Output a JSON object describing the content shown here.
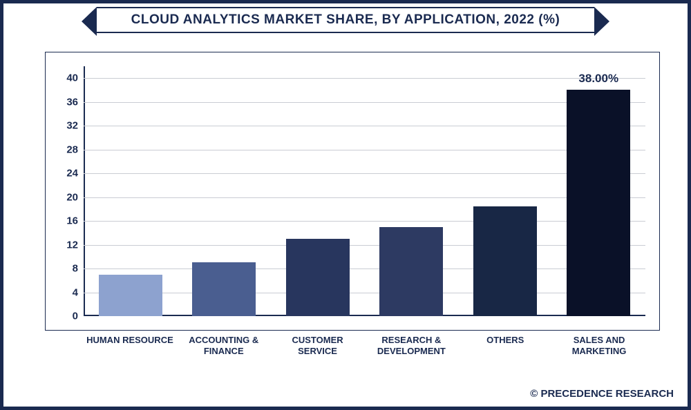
{
  "title": "CLOUD ANALYTICS MARKET SHARE, BY APPLICATION, 2022 (%)",
  "chart": {
    "type": "bar",
    "ylim": [
      0,
      42
    ],
    "yticks": [
      0,
      4,
      8,
      12,
      16,
      20,
      24,
      28,
      32,
      36,
      40
    ],
    "grid_color": "#c9ccd3",
    "axis_color": "#1a2a50",
    "background_color": "#ffffff",
    "tick_fontsize": 15,
    "xlabel_fontsize": 13,
    "bar_width": 0.68,
    "title_fontsize": 19,
    "series": [
      {
        "category": "HUMAN RESOURCE",
        "value": 7.0,
        "color": "#8da2cf",
        "label": null
      },
      {
        "category": "ACCOUNTING & FINANCE",
        "value": 9.0,
        "color": "#4a5e90",
        "label": null
      },
      {
        "category": "CUSTOMER SERVICE",
        "value": 13.0,
        "color": "#28365e",
        "label": null
      },
      {
        "category": "RESEARCH & DEVELOPMENT",
        "value": 15.0,
        "color": "#2d3a62",
        "label": null
      },
      {
        "category": "OTHERS",
        "value": 18.5,
        "color": "#182745",
        "label": null
      },
      {
        "category": "SALES AND MARKETING",
        "value": 38.0,
        "color": "#0a1128",
        "label": "38.00%"
      }
    ]
  },
  "attribution": "© PRECEDENCE RESEARCH"
}
